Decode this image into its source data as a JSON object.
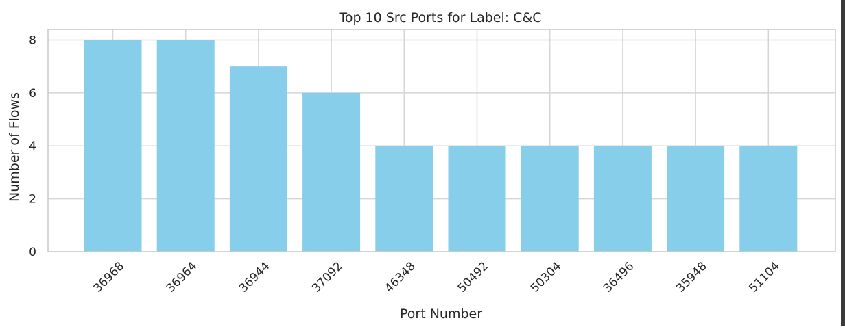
{
  "chart_data": {
    "type": "bar",
    "title": "Top 10 Src Ports for Label: C&C",
    "xlabel": "Port Number",
    "ylabel": "Number of Flows",
    "categories": [
      "36968",
      "36964",
      "36944",
      "37092",
      "46348",
      "50492",
      "50304",
      "36496",
      "35948",
      "51104"
    ],
    "values": [
      8,
      8,
      7,
      6,
      4,
      4,
      4,
      4,
      4,
      4
    ],
    "ylim": [
      0,
      8.4
    ],
    "yticks": [
      0,
      2,
      4,
      6,
      8
    ],
    "grid": true,
    "bar_color": "#87ceeb",
    "grid_color": "#d5d5d5",
    "x_tick_rotation": 45
  }
}
